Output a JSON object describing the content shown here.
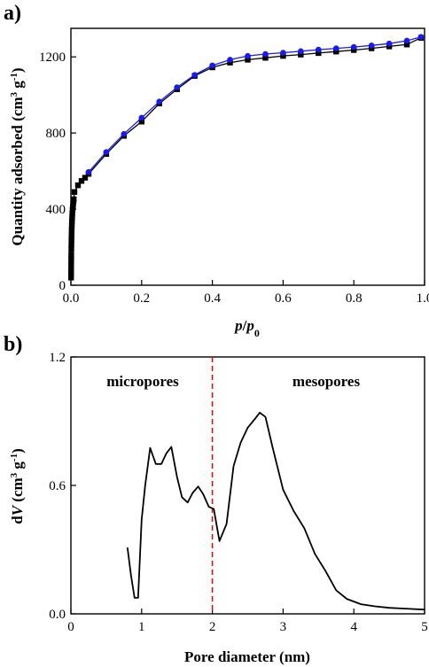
{
  "chart_data": [
    {
      "type": "scatter",
      "panel_label": "a)",
      "xlabel": {
        "main": "p",
        "sep": "/",
        "sub": "0"
      },
      "ylabel": {
        "pre": "Quantity adsorbed (cm",
        "sup1": "3",
        "mid": " g",
        "sup2": "-1",
        "post": ")"
      },
      "xlim": [
        0.0,
        1.0
      ],
      "ylim": [
        0,
        1350
      ],
      "xticks": [
        0.0,
        0.2,
        0.4,
        0.6,
        0.8,
        1.0
      ],
      "xtick_labels": [
        "0.0",
        "0.2",
        "0.4",
        "0.6",
        "0.8",
        "1.0"
      ],
      "yticks": [
        0,
        400,
        800,
        1200
      ],
      "ytick_labels": [
        "0",
        "400",
        "800",
        "1200"
      ],
      "grid": false,
      "series": [
        {
          "color": "#000000",
          "marker": "square",
          "x": [
            0.0005,
            0.0006,
            0.0007,
            0.0008,
            0.0009,
            0.001,
            0.0012,
            0.0014,
            0.0016,
            0.0019,
            0.0022,
            0.0026,
            0.003,
            0.0035,
            0.004,
            0.0047,
            0.0055,
            0.0063,
            0.0072,
            0.008,
            0.01,
            0.02,
            0.03,
            0.04,
            0.05,
            0.1,
            0.15,
            0.2,
            0.25,
            0.3,
            0.35,
            0.4,
            0.45,
            0.5,
            0.55,
            0.6,
            0.65,
            0.7,
            0.75,
            0.8,
            0.85,
            0.9,
            0.95,
            0.99
          ],
          "y": [
            40,
            60,
            85,
            110,
            135,
            160,
            190,
            215,
            240,
            265,
            290,
            315,
            335,
            355,
            375,
            395,
            410,
            425,
            440,
            452,
            490,
            525,
            548,
            565,
            585,
            690,
            785,
            860,
            955,
            1030,
            1100,
            1145,
            1170,
            1185,
            1195,
            1205,
            1212,
            1220,
            1228,
            1236,
            1245,
            1255,
            1265,
            1300
          ]
        },
        {
          "color": "#1a1aee",
          "marker": "circle",
          "x": [
            0.05,
            0.1,
            0.15,
            0.2,
            0.25,
            0.3,
            0.35,
            0.4,
            0.45,
            0.5,
            0.55,
            0.6,
            0.65,
            0.7,
            0.75,
            0.8,
            0.85,
            0.9,
            0.95,
            0.99
          ],
          "y": [
            595,
            700,
            795,
            880,
            965,
            1040,
            1105,
            1155,
            1185,
            1205,
            1215,
            1222,
            1230,
            1238,
            1245,
            1252,
            1260,
            1270,
            1285,
            1305
          ]
        }
      ]
    },
    {
      "type": "line",
      "panel_label": "b)",
      "xlabel": "Pore diameter (nm)",
      "ylabel": {
        "pre": "d",
        "italic": "V",
        "mid": " (cm",
        "sup1": "3",
        "mid2": " g",
        "sup2": "-1",
        "post": ")"
      },
      "xlim": [
        0,
        5
      ],
      "ylim": [
        0.0,
        1.2
      ],
      "xticks": [
        0,
        1,
        2,
        3,
        4,
        5
      ],
      "xtick_labels": [
        "0",
        "1",
        "2",
        "3",
        "4",
        "5"
      ],
      "yticks": [
        0.0,
        0.6,
        1.2
      ],
      "ytick_labels": [
        "0.0",
        "0.6",
        "1.2"
      ],
      "grid": false,
      "divider_x": 2.0,
      "divider_color": "#dd1111",
      "annotations": [
        "micropores",
        "mesopores"
      ],
      "series": [
        {
          "color": "#000000",
          "x": [
            0.8,
            0.85,
            0.9,
            0.95,
            1.0,
            1.05,
            1.12,
            1.2,
            1.28,
            1.35,
            1.42,
            1.5,
            1.57,
            1.65,
            1.72,
            1.8,
            1.87,
            1.95,
            2.02,
            2.1,
            2.2,
            2.3,
            2.4,
            2.5,
            2.6,
            2.67,
            2.75,
            2.85,
            3.0,
            3.15,
            3.3,
            3.45,
            3.6,
            3.75,
            3.9,
            4.1,
            4.3,
            4.5,
            4.7,
            5.0
          ],
          "y": [
            0.31,
            0.18,
            0.075,
            0.075,
            0.44,
            0.6,
            0.775,
            0.7,
            0.7,
            0.75,
            0.78,
            0.64,
            0.545,
            0.52,
            0.565,
            0.595,
            0.56,
            0.5,
            0.49,
            0.34,
            0.42,
            0.69,
            0.8,
            0.87,
            0.91,
            0.94,
            0.92,
            0.78,
            0.58,
            0.48,
            0.4,
            0.28,
            0.2,
            0.11,
            0.07,
            0.045,
            0.035,
            0.028,
            0.025,
            0.02
          ]
        }
      ]
    }
  ]
}
